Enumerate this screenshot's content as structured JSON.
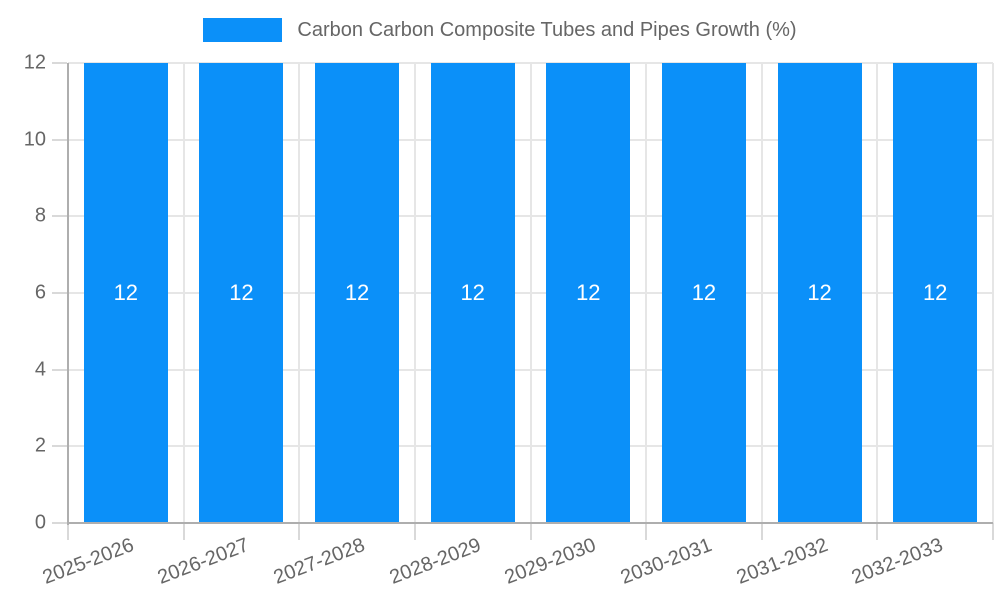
{
  "legend": {
    "label": "Carbon Carbon Composite Tubes and Pipes Growth (%)"
  },
  "chart_data": {
    "type": "bar",
    "title": "Carbon Carbon Composite Tubes and Pipes Growth (%)",
    "categories": [
      "2025-2026",
      "2026-2027",
      "2027-2028",
      "2028-2029",
      "2029-2030",
      "2030-2031",
      "2031-2032",
      "2032-2033"
    ],
    "series": [
      {
        "name": "Carbon Carbon Composite Tubes and Pipes Growth (%)",
        "values": [
          12,
          12,
          12,
          12,
          12,
          12,
          12,
          12
        ]
      }
    ],
    "value_labels": [
      "12",
      "12",
      "12",
      "12",
      "12",
      "12",
      "12",
      "12"
    ],
    "xlabel": "",
    "ylabel": "",
    "ylim": [
      0,
      12
    ],
    "yticks": [
      0,
      2,
      4,
      6,
      8,
      10,
      12
    ],
    "ytick_labels": [
      "0",
      "2",
      "4",
      "6",
      "8",
      "10",
      "12"
    ],
    "grid": true,
    "legend_position": "top",
    "colors": {
      "bar": "#0b90f9",
      "value_label": "#ffffff",
      "axis_text": "#666666",
      "grid_line": "#e6e6e6",
      "tick_mark": "#d9d9d9",
      "axis_line": "#aeaeae",
      "background": "#ffffff"
    }
  }
}
